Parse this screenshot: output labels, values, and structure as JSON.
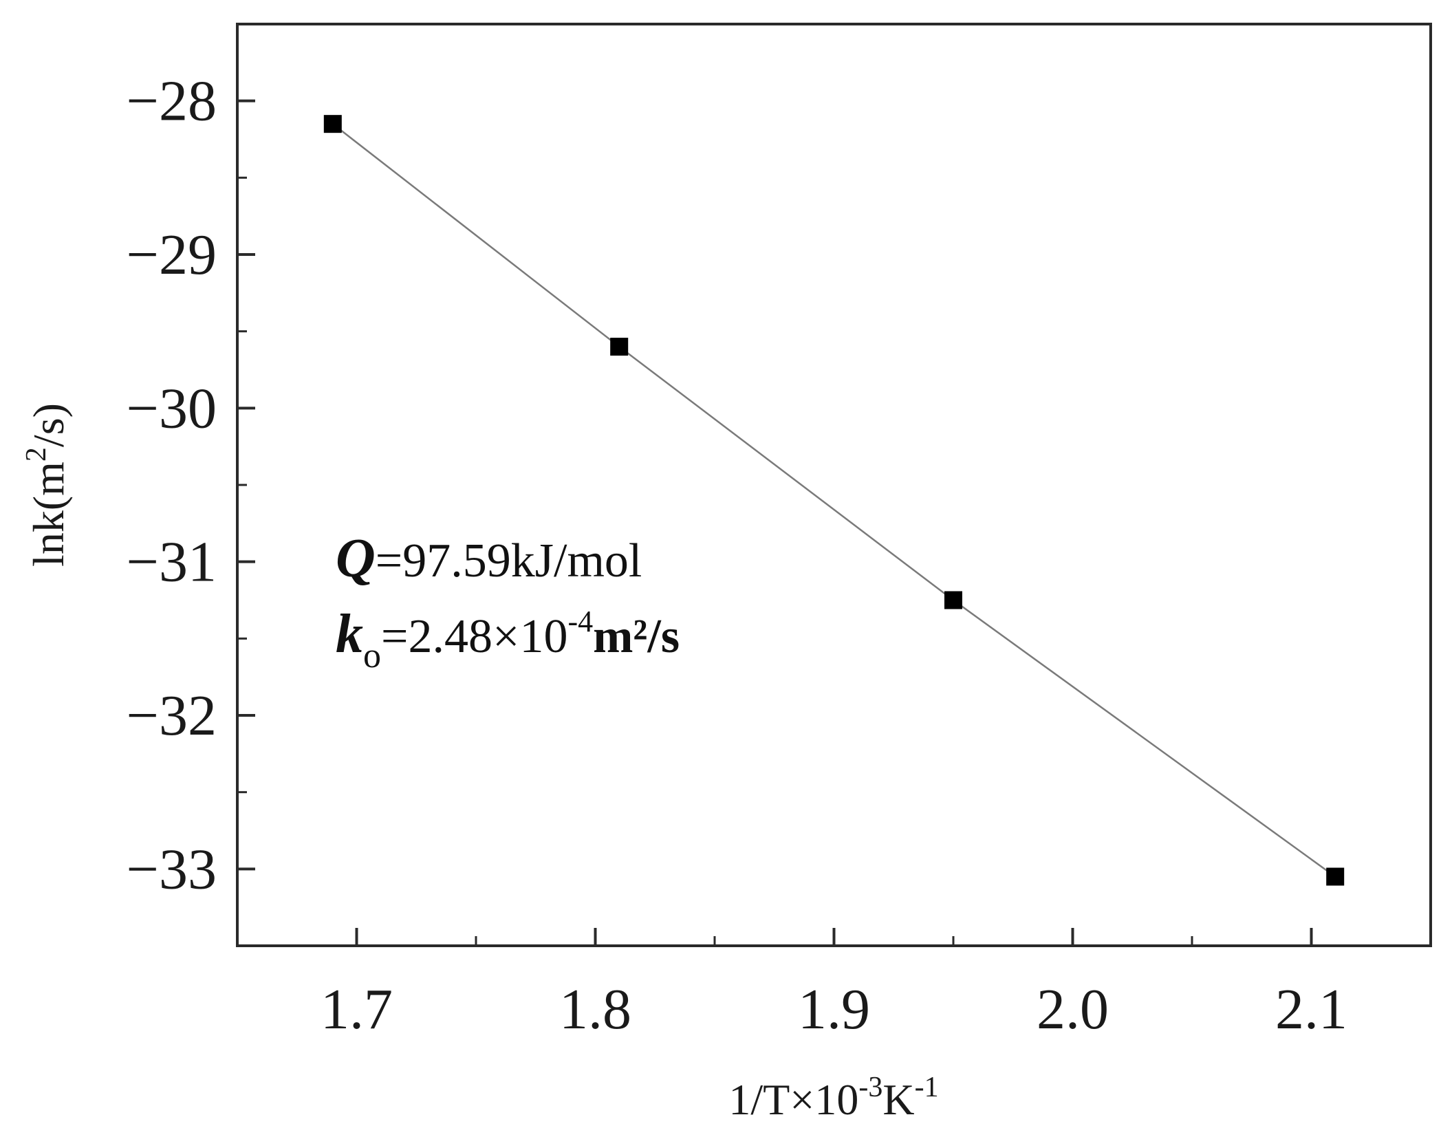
{
  "chart_data": {
    "type": "line",
    "xlabel": {
      "main": "1/T×10",
      "exp1": "-3",
      "mid": "K",
      "exp2": "-1"
    },
    "ylabel": {
      "main": "lnk(m",
      "exp": "2",
      "tail": "/s)"
    },
    "x_ticks": [
      "1.7",
      "1.8",
      "1.9",
      "2.0",
      "2.1"
    ],
    "y_ticks": [
      "-28",
      "-29",
      "-30",
      "-31",
      "-32",
      "-33"
    ],
    "xlim": [
      1.65,
      2.15
    ],
    "ylim": [
      -33.5,
      -27.5
    ],
    "grid": false,
    "marker": "square",
    "colors": {
      "marker": "#000000",
      "line": "#7a7a7a",
      "axis": "#2a2a2a"
    },
    "series": [
      {
        "x": [
          1.69,
          1.81,
          1.95,
          2.11
        ],
        "y": [
          -28.15,
          -29.6,
          -31.25,
          -33.05
        ]
      }
    ],
    "annotations": {
      "q_symbol": "Q",
      "q_value": "=97.59kJ/mol",
      "k_symbol": "k",
      "k_sub": "o",
      "k_value": "=2.48×10",
      "k_exp": "-4",
      "k_unit": "m²/s"
    }
  }
}
